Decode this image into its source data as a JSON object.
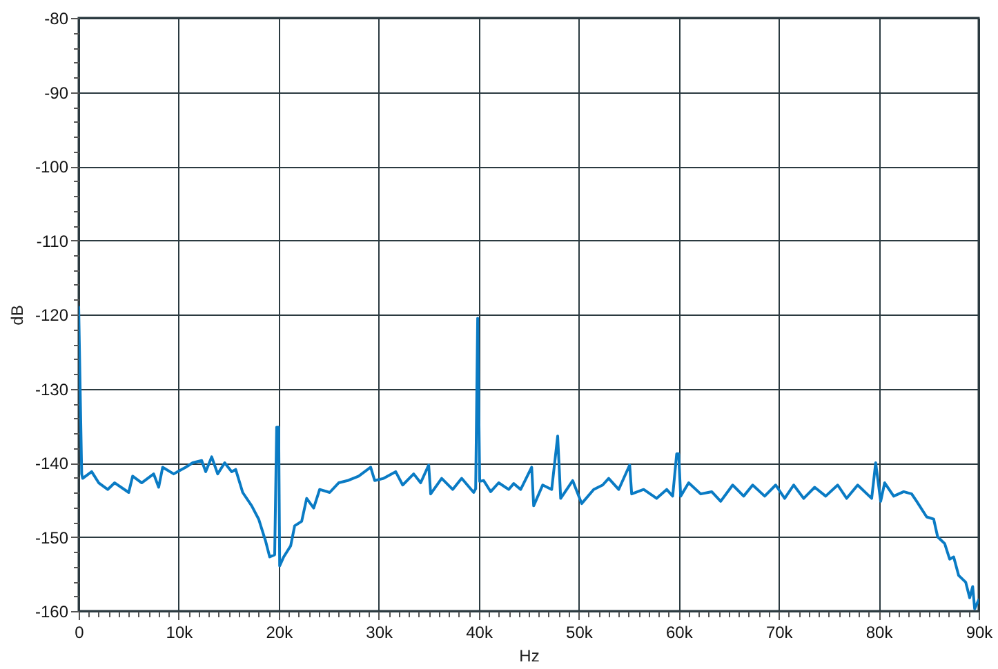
{
  "chart_data": {
    "type": "line",
    "xlabel": "Hz",
    "ylabel": "dB",
    "x": [
      0,
      300,
      400,
      1300,
      2000,
      2900,
      3600,
      5000,
      5400,
      6300,
      7500,
      8000,
      8400,
      9500,
      10700,
      11400,
      12300,
      12700,
      13300,
      13900,
      14600,
      15300,
      15700,
      16400,
      17300,
      18000,
      18700,
      19100,
      19600,
      19800,
      20000,
      20100,
      20500,
      21200,
      21600,
      22300,
      22800,
      23500,
      24100,
      25100,
      26000,
      26900,
      28000,
      29200,
      29600,
      30500,
      31700,
      32400,
      33500,
      34200,
      35000,
      35200,
      36300,
      37400,
      38300,
      39500,
      39700,
      39900,
      40100,
      40500,
      41200,
      42000,
      43000,
      43500,
      44200,
      45300,
      45500,
      46400,
      47300,
      47900,
      48200,
      49400,
      50300,
      51500,
      52400,
      53000,
      54000,
      55100,
      55300,
      56500,
      57800,
      58800,
      59400,
      59800,
      60000,
      60200,
      61000,
      62200,
      63300,
      64200,
      65400,
      66500,
      67400,
      68600,
      69700,
      70600,
      71500,
      72500,
      73600,
      74700,
      75900,
      76800,
      77900,
      79300,
      79700,
      80200,
      80600,
      81500,
      82500,
      83300,
      83800,
      84800,
      85500,
      85900,
      86600,
      87100,
      87500,
      88000,
      88700,
      89100,
      89400,
      89600,
      90000
    ],
    "series": [
      {
        "color": "#0a7bc4",
        "values": [
          -119,
          -141.5,
          -142.1,
          -141.2,
          -142.7,
          -143.6,
          -142.7,
          -144,
          -141.8,
          -142.7,
          -141.5,
          -143.3,
          -140.6,
          -141.5,
          -140.6,
          -140,
          -139.7,
          -141.2,
          -139.2,
          -141.5,
          -140,
          -141.2,
          -140.9,
          -144,
          -145.8,
          -147.6,
          -150.6,
          -152.7,
          -152.4,
          -135.2,
          -135.2,
          -153.9,
          -152.7,
          -151.2,
          -148.5,
          -147.9,
          -144.8,
          -146.1,
          -143.6,
          -144,
          -142.7,
          -142.4,
          -141.8,
          -140.6,
          -142.4,
          -142.1,
          -141.2,
          -143,
          -141.5,
          -142.7,
          -140.3,
          -144.2,
          -142.1,
          -143.6,
          -142.1,
          -144,
          -143.5,
          -120.5,
          -142.5,
          -142.4,
          -143.9,
          -142.7,
          -143.6,
          -142.8,
          -143.6,
          -140.6,
          -145.8,
          -143,
          -143.6,
          -136.4,
          -144.8,
          -142.4,
          -145.5,
          -143.6,
          -143,
          -142.1,
          -143.6,
          -140.3,
          -144.2,
          -143.6,
          -144.8,
          -143.6,
          -144.5,
          -138.8,
          -138.8,
          -144.5,
          -142.7,
          -144.2,
          -143.9,
          -145.2,
          -143,
          -144.5,
          -143,
          -144.5,
          -143,
          -144.8,
          -143,
          -144.8,
          -143.3,
          -144.5,
          -143,
          -144.8,
          -143,
          -144.8,
          -140,
          -145.2,
          -142.7,
          -144.5,
          -143.9,
          -144.2,
          -145.2,
          -147.3,
          -147.6,
          -150,
          -150.9,
          -153,
          -152.7,
          -155.2,
          -156.1,
          -158.2,
          -156.7,
          -159.7,
          -158.5
        ]
      }
    ],
    "xlim": [
      0,
      90000
    ],
    "xticks": [
      0,
      {
        "value": 1000,
        "label": null
      },
      {
        "value": 2000,
        "label": null
      },
      {
        "value": 3000,
        "label": null
      },
      {
        "value": 4000,
        "label": null
      },
      {
        "value": 5000,
        "label": null
      },
      {
        "value": 6000,
        "label": null
      },
      {
        "value": 7000,
        "label": null
      },
      {
        "value": 8000,
        "label": null
      },
      {
        "value": 9000,
        "label": null
      },
      {
        "value": 10000,
        "label": "10k"
      },
      {
        "value": 11000,
        "label": null
      },
      {
        "value": 12000,
        "label": null
      },
      {
        "value": 13000,
        "label": null
      },
      {
        "value": 14000,
        "label": null
      },
      {
        "value": 15000,
        "label": null
      },
      {
        "value": 16000,
        "label": null
      },
      {
        "value": 17000,
        "label": null
      },
      {
        "value": 18000,
        "label": null
      },
      {
        "value": 19000,
        "label": null
      },
      {
        "value": 20000,
        "label": "20k"
      },
      {
        "value": 21000,
        "label": null
      },
      {
        "value": 22000,
        "label": null
      },
      {
        "value": 23000,
        "label": null
      },
      {
        "value": 24000,
        "label": null
      },
      {
        "value": 25000,
        "label": null
      },
      {
        "value": 26000,
        "label": null
      },
      {
        "value": 27000,
        "label": null
      },
      {
        "value": 28000,
        "label": null
      },
      {
        "value": 29000,
        "label": null
      },
      {
        "value": 30000,
        "label": "30k"
      },
      {
        "value": 31000,
        "label": null
      },
      {
        "value": 32000,
        "label": null
      },
      {
        "value": 33000,
        "label": null
      },
      {
        "value": 34000,
        "label": null
      },
      {
        "value": 35000,
        "label": null
      },
      {
        "value": 36000,
        "label": null
      },
      {
        "value": 37000,
        "label": null
      },
      {
        "value": 38000,
        "label": null
      },
      {
        "value": 39000,
        "label": null
      },
      {
        "value": 40000,
        "label": "40k"
      },
      {
        "value": 41000,
        "label": null
      },
      {
        "value": 42000,
        "label": null
      },
      {
        "value": 43000,
        "label": null
      },
      {
        "value": 44000,
        "label": null
      },
      {
        "value": 45000,
        "label": null
      },
      {
        "value": 46000,
        "label": null
      },
      {
        "value": 47000,
        "label": null
      },
      {
        "value": 48000,
        "label": null
      },
      {
        "value": 49000,
        "label": null
      },
      {
        "value": 50000,
        "label": "50k"
      },
      {
        "value": 51000,
        "label": null
      },
      {
        "value": 52000,
        "label": null
      },
      {
        "value": 53000,
        "label": null
      },
      {
        "value": 54000,
        "label": null
      },
      {
        "value": 55000,
        "label": null
      },
      {
        "value": 56000,
        "label": null
      },
      {
        "value": 57000,
        "label": null
      },
      {
        "value": 58000,
        "label": null
      },
      {
        "value": 59000,
        "label": null
      },
      {
        "value": 60000,
        "label": "60k"
      },
      {
        "value": 61000,
        "label": null
      },
      {
        "value": 62000,
        "label": null
      },
      {
        "value": 63000,
        "label": null
      },
      {
        "value": 64000,
        "label": null
      },
      {
        "value": 65000,
        "label": null
      },
      {
        "value": 66000,
        "label": null
      },
      {
        "value": 67000,
        "label": null
      },
      {
        "value": 68000,
        "label": null
      },
      {
        "value": 69000,
        "label": null
      },
      {
        "value": 70000,
        "label": "70k"
      },
      {
        "value": 71000,
        "label": null
      },
      {
        "value": 72000,
        "label": null
      },
      {
        "value": 73000,
        "label": null
      },
      {
        "value": 74000,
        "label": null
      },
      {
        "value": 75000,
        "label": null
      },
      {
        "value": 76000,
        "label": null
      },
      {
        "value": 77000,
        "label": null
      },
      {
        "value": 78000,
        "label": null
      },
      {
        "value": 79000,
        "label": null
      },
      {
        "value": 80000,
        "label": "80k"
      },
      {
        "value": 81000,
        "label": null
      },
      {
        "value": 82000,
        "label": null
      },
      {
        "value": 83000,
        "label": null
      },
      {
        "value": 84000,
        "label": null
      },
      {
        "value": 85000,
        "label": null
      },
      {
        "value": 86000,
        "label": null
      },
      {
        "value": 87000,
        "label": null
      },
      {
        "value": 88000,
        "label": null
      },
      {
        "value": 89000,
        "label": null
      },
      {
        "value": 90000,
        "label": "90k"
      }
    ],
    "ylim": [
      -160,
      -80
    ],
    "yticks": [
      -160,
      {
        "value": -158,
        "label": null
      },
      {
        "value": -156,
        "label": null
      },
      {
        "value": -154,
        "label": null
      },
      {
        "value": -152,
        "label": null
      },
      -150,
      {
        "value": -148,
        "label": null
      },
      {
        "value": -146,
        "label": null
      },
      {
        "value": -144,
        "label": null
      },
      {
        "value": -142,
        "label": null
      },
      -140,
      {
        "value": -138,
        "label": null
      },
      {
        "value": -136,
        "label": null
      },
      {
        "value": -134,
        "label": null
      },
      {
        "value": -132,
        "label": null
      },
      -130,
      {
        "value": -128,
        "label": null
      },
      {
        "value": -126,
        "label": null
      },
      {
        "value": -124,
        "label": null
      },
      {
        "value": -122,
        "label": null
      },
      -120,
      {
        "value": -118,
        "label": null
      },
      {
        "value": -116,
        "label": null
      },
      {
        "value": -114,
        "label": null
      },
      {
        "value": -112,
        "label": null
      },
      -110,
      {
        "value": -108,
        "label": null
      },
      {
        "value": -106,
        "label": null
      },
      {
        "value": -104,
        "label": null
      },
      {
        "value": -102,
        "label": null
      },
      -100,
      {
        "value": -98,
        "label": null
      },
      {
        "value": -96,
        "label": null
      },
      {
        "value": -94,
        "label": null
      },
      {
        "value": -92,
        "label": null
      },
      -90,
      {
        "value": -88,
        "label": null
      },
      {
        "value": -86,
        "label": null
      },
      {
        "value": -84,
        "label": null
      },
      {
        "value": -82,
        "label": null
      },
      -80
    ],
    "grid": true,
    "line_style": "solid",
    "marker": "none"
  }
}
